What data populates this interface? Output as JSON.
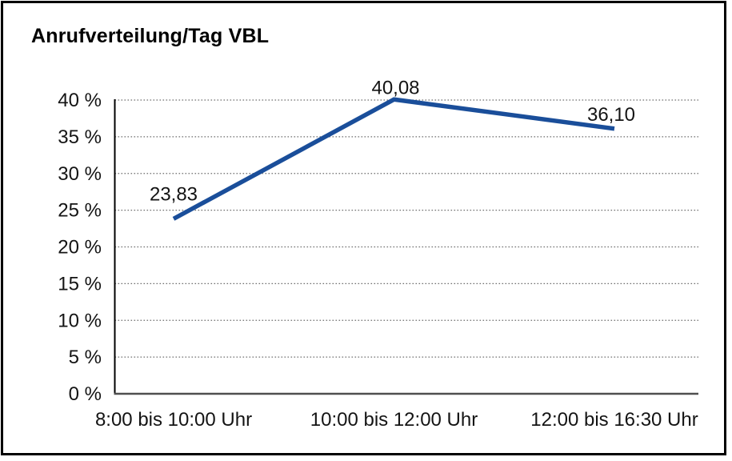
{
  "window": {
    "background": "#ffffff",
    "frame_border_color": "#000000"
  },
  "chart_data": {
    "type": "line",
    "title": "Anrufverteilung/Tag VBL",
    "categories": [
      "8:00 bis 10:00 Uhr",
      "10:00 bis 12:00 Uhr",
      "12:00 bis 16:30 Uhr"
    ],
    "values": [
      23.83,
      40.08,
      36.1
    ],
    "point_labels": [
      "23,83",
      "40,08",
      "36,10"
    ],
    "xlabel": "",
    "ylabel": "",
    "ylim": [
      0,
      40
    ],
    "ytick_step": 5,
    "ytick_labels": [
      "0 %",
      "5 %",
      "10 %",
      "15 %",
      "20 %",
      "25 %",
      "30 %",
      "35 %",
      "40 %"
    ],
    "grid": "horizontal-dotted",
    "legend": "none",
    "line_color": "#1A4E9A",
    "text_color": "#141414"
  }
}
